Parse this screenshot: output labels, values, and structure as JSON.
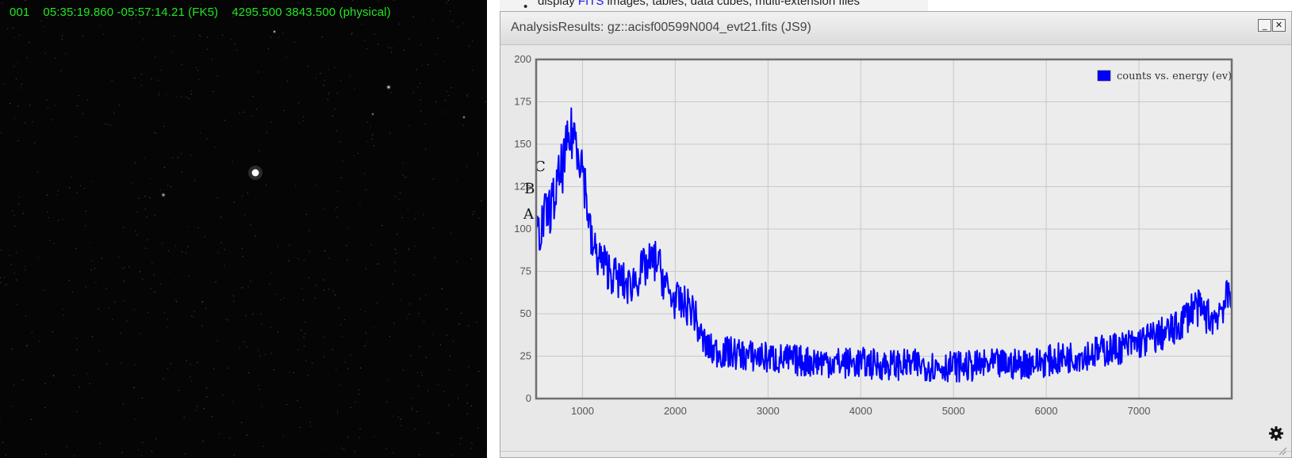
{
  "image_pane": {
    "coord_readout": "001    05:35:19.860 -05:57:14.21 (FK5)    4295.500 3843.500 (physical)",
    "background": "#050505",
    "readout_color": "#22e622"
  },
  "background_page": {
    "bullet": "•",
    "text_before": "display ",
    "link": "FITS",
    "text_after": " images, tables, data cubes, multi-extension files"
  },
  "plot_window": {
    "title": "AnalysisResults: gz::acisf00599N004_evt21.fits (JS9)",
    "minimize_label": "_",
    "close_label": "✕",
    "icons": [
      "gear-icon",
      "resize-grip-icon"
    ]
  },
  "chart_data": {
    "type": "line",
    "xlim": [
      500,
      8000
    ],
    "ylim": [
      0,
      200
    ],
    "x_ticks": [
      1000,
      2000,
      3000,
      4000,
      5000,
      6000,
      7000
    ],
    "y_ticks": [
      0,
      25,
      50,
      75,
      100,
      125,
      150,
      175,
      200
    ],
    "grid": true,
    "legend_position": "top-right",
    "series": [
      {
        "name": "counts vs. energy (ev)",
        "color": "#0000ff",
        "noise": 8,
        "x": [
          500,
          550,
          600,
          650,
          700,
          750,
          800,
          850,
          900,
          950,
          1000,
          1050,
          1100,
          1150,
          1200,
          1250,
          1300,
          1350,
          1400,
          1450,
          1500,
          1550,
          1600,
          1650,
          1700,
          1750,
          1800,
          1850,
          1900,
          1950,
          2000,
          2050,
          2100,
          2150,
          2200,
          2250,
          2300,
          2350,
          2400,
          2450,
          2500,
          2600,
          2700,
          2800,
          2900,
          3000,
          3200,
          3400,
          3600,
          3800,
          4000,
          4200,
          4400,
          4600,
          4800,
          5000,
          5200,
          5400,
          5600,
          5800,
          6000,
          6200,
          6400,
          6600,
          6800,
          7000,
          7100,
          7200,
          7300,
          7400,
          7500,
          7600,
          7700,
          7800,
          7900,
          8000
        ],
        "y": [
          95,
          100,
          108,
          112,
          118,
          130,
          140,
          150,
          158,
          150,
          138,
          115,
          90,
          85,
          82,
          78,
          75,
          72,
          70,
          68,
          66,
          70,
          72,
          76,
          78,
          80,
          82,
          74,
          66,
          60,
          58,
          56,
          55,
          54,
          52,
          40,
          34,
          30,
          28,
          28,
          27,
          27,
          26,
          25,
          25,
          24,
          23,
          22,
          22,
          21,
          21,
          20,
          20,
          20,
          19,
          19,
          19,
          20,
          20,
          21,
          22,
          24,
          26,
          28,
          30,
          33,
          35,
          37,
          39,
          41,
          48,
          55,
          50,
          47,
          55,
          62
        ]
      }
    ],
    "annotations": [
      {
        "text": "A",
        "x": 500,
        "y": 106
      },
      {
        "text": "B",
        "x": 510,
        "y": 121
      },
      {
        "text": "C",
        "x": 620,
        "y": 134
      }
    ]
  }
}
